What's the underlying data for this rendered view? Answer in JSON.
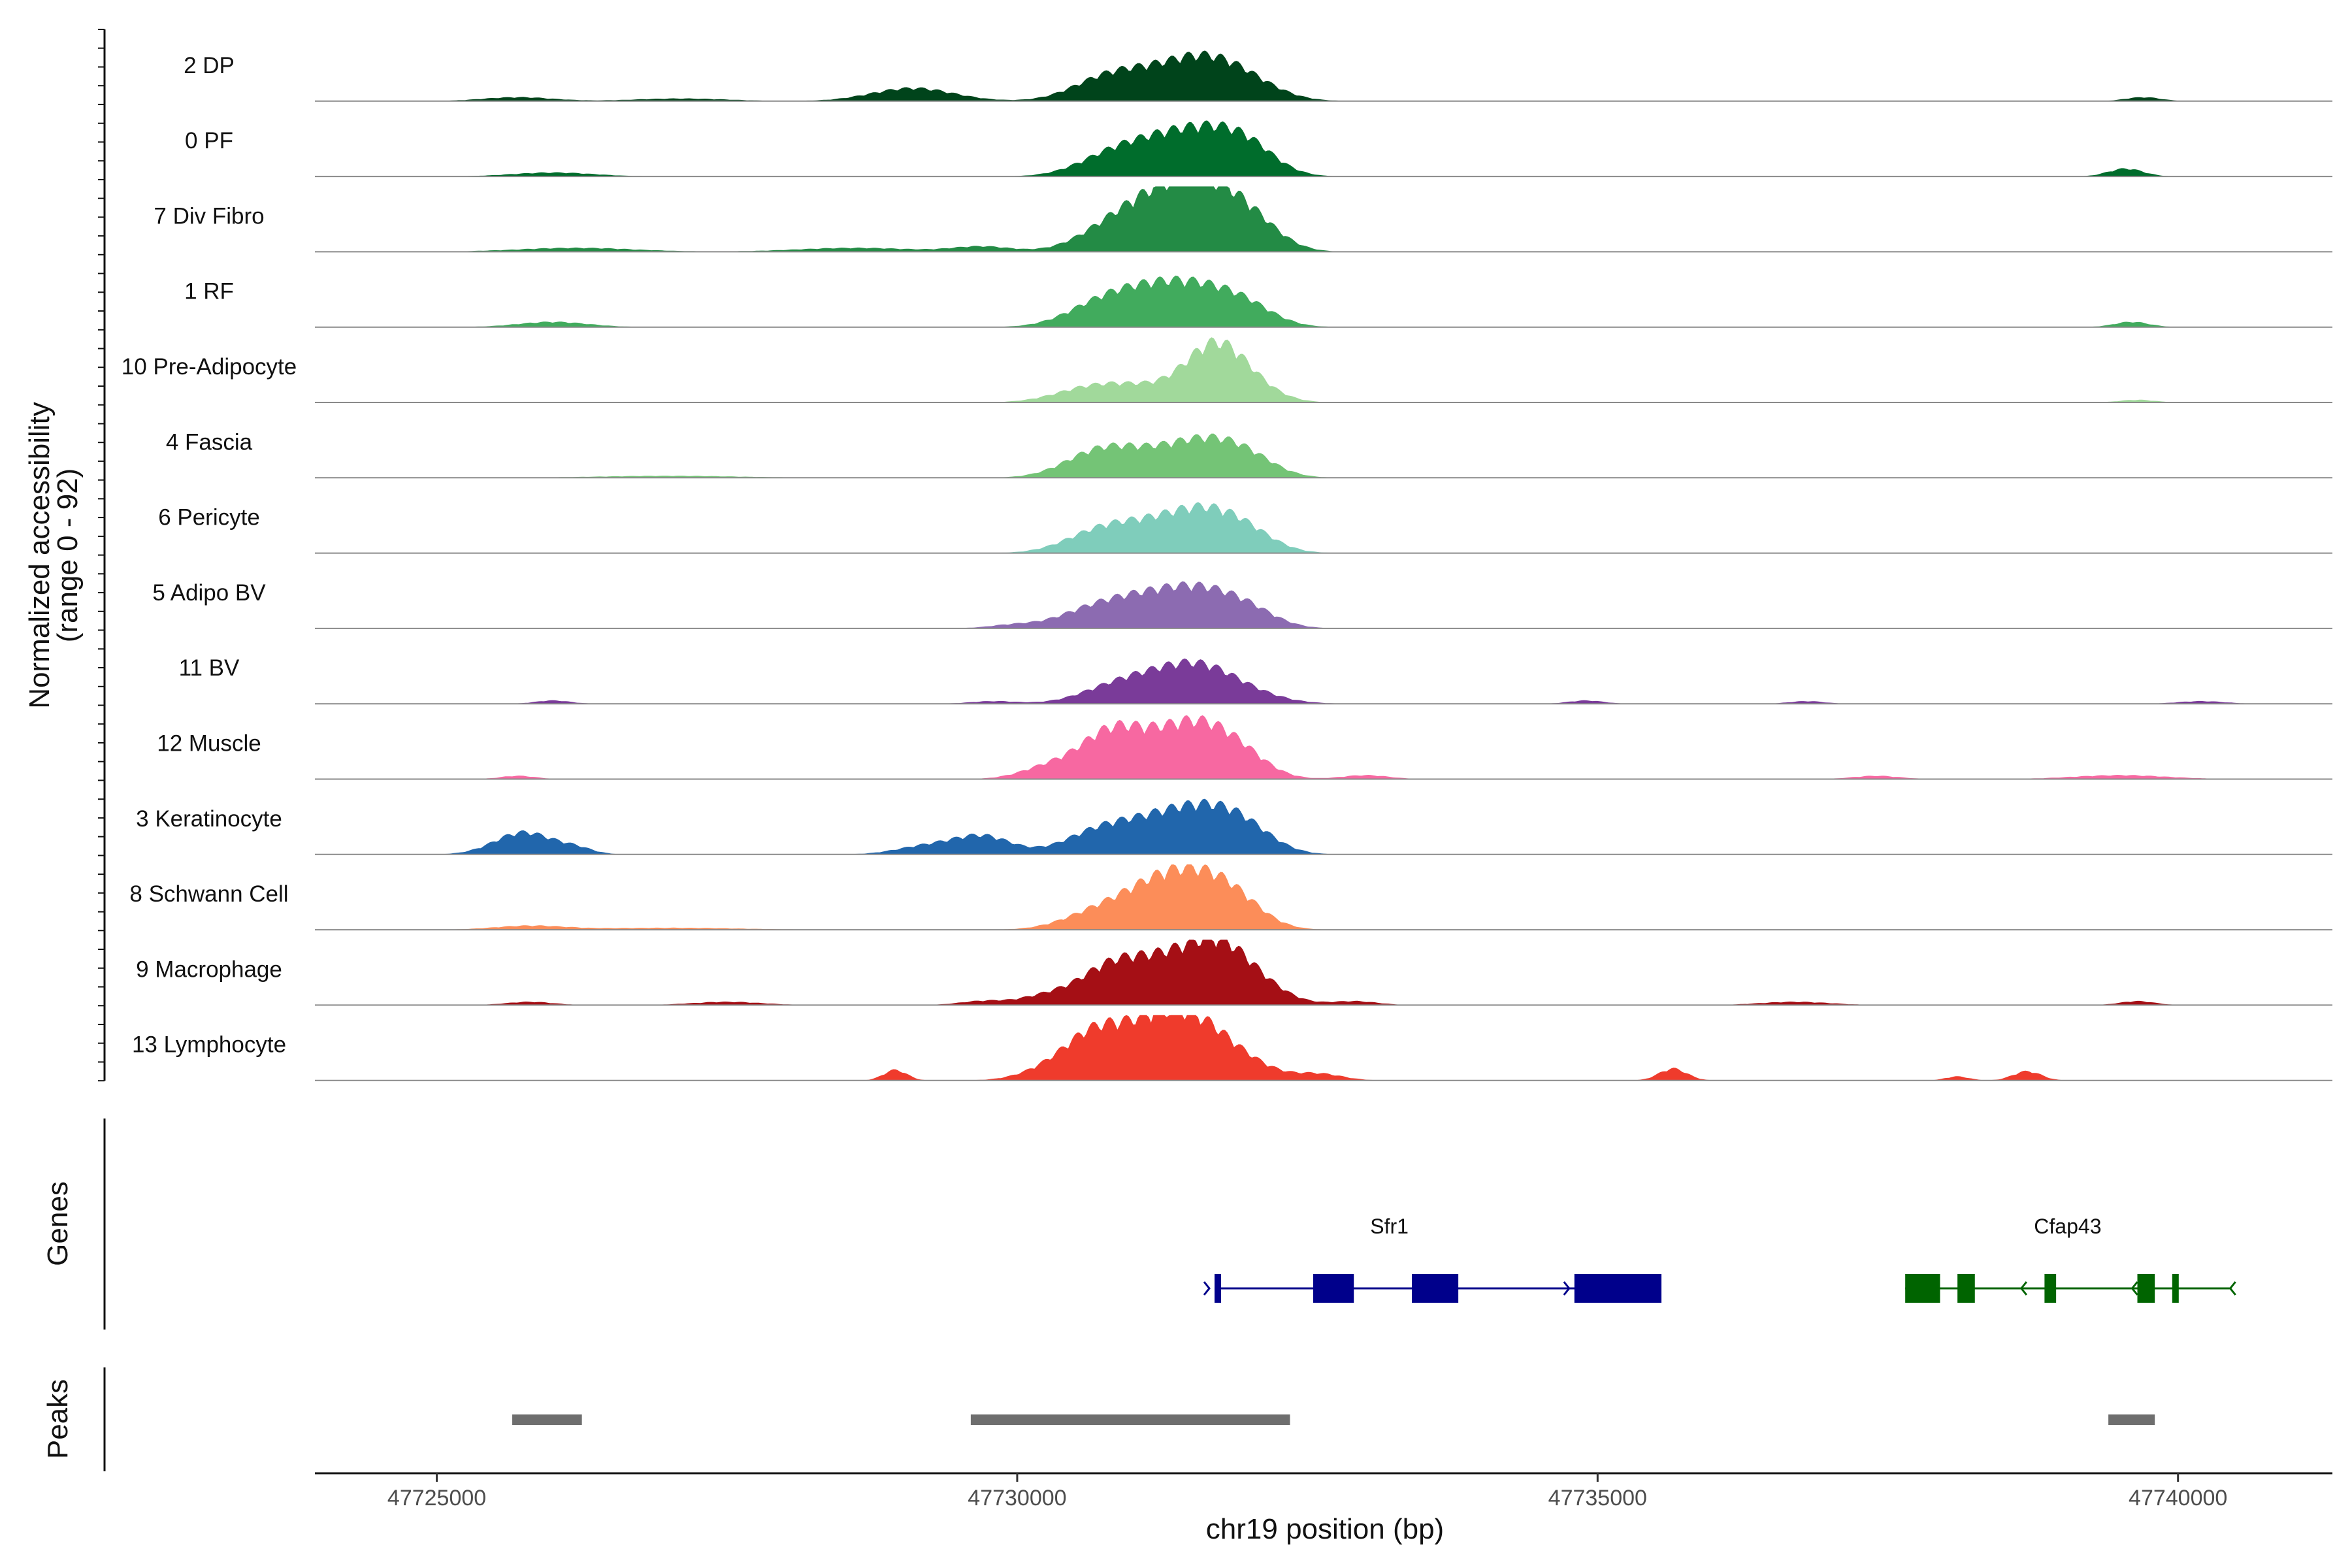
{
  "chart_data": {
    "type": "area",
    "title": "",
    "xlabel": "chr19 position (bp)",
    "ylabel": "Normalized accessibility",
    "ylabel_sub": "(range 0 - 92)",
    "ylim": [
      0,
      92
    ],
    "xlim": [
      47723950,
      47741330
    ],
    "x_ticks": [
      47725000,
      47730000,
      47735000,
      47740000
    ],
    "x_tick_labels": [
      "47725000",
      "47730000",
      "47735000",
      "47740000"
    ],
    "tracks": [
      {
        "name": "2 DP",
        "color": "#00441b",
        "peaks": [
          [
            47725700,
            6,
            300
          ],
          [
            47729100,
            20,
            350
          ],
          [
            47730750,
            28,
            300
          ],
          [
            47731200,
            32,
            350
          ],
          [
            47731600,
            40,
            300
          ],
          [
            47731950,
            28,
            300
          ],
          [
            47739700,
            6,
            150
          ],
          [
            47727100,
            4,
            400
          ]
        ]
      },
      {
        "name": "0 PF",
        "color": "#006d2c",
        "peaks": [
          [
            47726000,
            6,
            350
          ],
          [
            47730800,
            26,
            300
          ],
          [
            47731300,
            48,
            350
          ],
          [
            47731700,
            38,
            300
          ],
          [
            47732000,
            32,
            250
          ],
          [
            47739550,
            12,
            150
          ]
        ]
      },
      {
        "name": "7 Div Fibro",
        "color": "#238b45",
        "peaks": [
          [
            47726200,
            6,
            500
          ],
          [
            47728600,
            6,
            500
          ],
          [
            47729700,
            8,
            250
          ],
          [
            47730800,
            28,
            300
          ],
          [
            47731300,
            78,
            350
          ],
          [
            47731700,
            60,
            300
          ],
          [
            47732050,
            28,
            250
          ]
        ]
      },
      {
        "name": "1 RF",
        "color": "#41ab5d",
        "peaks": [
          [
            47726000,
            8,
            300
          ],
          [
            47730700,
            28,
            300
          ],
          [
            47731200,
            52,
            350
          ],
          [
            47731650,
            36,
            300
          ],
          [
            47732000,
            22,
            250
          ],
          [
            47739600,
            8,
            150
          ]
        ]
      },
      {
        "name": "10 Pre-Adipocyte",
        "color": "#a1d99b",
        "peaks": [
          [
            47730600,
            18,
            300
          ],
          [
            47731100,
            22,
            350
          ],
          [
            47731700,
            78,
            250
          ],
          [
            47732000,
            20,
            250
          ],
          [
            47739650,
            4,
            150
          ]
        ]
      },
      {
        "name": "4 Fascia",
        "color": "#74c476",
        "peaks": [
          [
            47730700,
            36,
            300
          ],
          [
            47731200,
            28,
            350
          ],
          [
            47731650,
            42,
            300
          ],
          [
            47732000,
            22,
            250
          ],
          [
            47727000,
            3,
            600
          ]
        ]
      },
      {
        "name": "6 Pericyte",
        "color": "#7fcdbb",
        "peaks": [
          [
            47730700,
            28,
            300
          ],
          [
            47731200,
            36,
            350
          ],
          [
            47731650,
            48,
            300
          ],
          [
            47732000,
            20,
            250
          ]
        ]
      },
      {
        "name": "5 Adipo BV",
        "color": "#8c6bb1",
        "peaks": [
          [
            47729950,
            5,
            200
          ],
          [
            47730600,
            20,
            300
          ],
          [
            47731100,
            42,
            350
          ],
          [
            47731600,
            44,
            300
          ],
          [
            47732000,
            22,
            250
          ]
        ]
      },
      {
        "name": "11 BV",
        "color": "#7a3b99",
        "peaks": [
          [
            47726000,
            5,
            150
          ],
          [
            47729800,
            4,
            200
          ],
          [
            47730800,
            16,
            300
          ],
          [
            47731200,
            32,
            350
          ],
          [
            47731600,
            40,
            300
          ],
          [
            47732000,
            12,
            300
          ],
          [
            47734900,
            5,
            150
          ],
          [
            47740200,
            4,
            200
          ],
          [
            47736800,
            4,
            150
          ]
        ]
      },
      {
        "name": "12 Muscle",
        "color": "#f768a1",
        "peaks": [
          [
            47725700,
            5,
            150
          ],
          [
            47730300,
            20,
            250
          ],
          [
            47730800,
            66,
            250
          ],
          [
            47731200,
            40,
            250
          ],
          [
            47731550,
            60,
            250
          ],
          [
            47731900,
            40,
            250
          ],
          [
            47733000,
            6,
            200
          ],
          [
            47737400,
            5,
            200
          ],
          [
            47739500,
            6,
            400
          ]
        ]
      },
      {
        "name": "3 Keratinocyte",
        "color": "#2166ac",
        "peaks": [
          [
            47725750,
            34,
            250
          ],
          [
            47726200,
            8,
            150
          ],
          [
            47729700,
            28,
            250
          ],
          [
            47729200,
            12,
            250
          ],
          [
            47730700,
            32,
            300
          ],
          [
            47731300,
            52,
            350
          ],
          [
            47731750,
            42,
            300
          ],
          [
            47732000,
            18,
            250
          ]
        ]
      },
      {
        "name": "8 Schwann Cell",
        "color": "#fc8d59",
        "peaks": [
          [
            47725800,
            6,
            300
          ],
          [
            47727000,
            3,
            600
          ],
          [
            47730700,
            26,
            300
          ],
          [
            47731200,
            54,
            300
          ],
          [
            47731600,
            58,
            300
          ],
          [
            47731900,
            26,
            250
          ]
        ]
      },
      {
        "name": "9 Macrophage",
        "color": "#a50f15",
        "peaks": [
          [
            47725800,
            5,
            200
          ],
          [
            47727500,
            5,
            300
          ],
          [
            47729700,
            6,
            200
          ],
          [
            47730300,
            16,
            250
          ],
          [
            47730800,
            50,
            250
          ],
          [
            47731300,
            64,
            300
          ],
          [
            47731750,
            72,
            250
          ],
          [
            47732100,
            24,
            250
          ],
          [
            47732900,
            6,
            200
          ],
          [
            47736700,
            5,
            300
          ],
          [
            47739650,
            6,
            150
          ]
        ]
      },
      {
        "name": "13 Lymphocyte",
        "color": "#ef3b2c",
        "peaks": [
          [
            47728950,
            16,
            100
          ],
          [
            47730300,
            18,
            250
          ],
          [
            47730700,
            70,
            250
          ],
          [
            47731200,
            78,
            250
          ],
          [
            47731600,
            68,
            250
          ],
          [
            47732000,
            22,
            250
          ],
          [
            47732600,
            10,
            200
          ],
          [
            47735650,
            18,
            120
          ],
          [
            47738100,
            6,
            100
          ],
          [
            47738700,
            14,
            120
          ]
        ]
      }
    ],
    "genes": [
      {
        "name": "Sfr1",
        "strand": "+",
        "color": "#00008b",
        "start": 47731700,
        "end": 47735500,
        "exons": [
          [
            47731700,
            47731750
          ],
          [
            47732550,
            47732900
          ],
          [
            47733400,
            47733800
          ],
          [
            47734800,
            47735550
          ]
        ]
      },
      {
        "name": "Cfap43",
        "strand": "-",
        "color": "#006400",
        "start": 47737650,
        "end": 47740450,
        "exons": [
          [
            47737650,
            47737950
          ],
          [
            47738100,
            47738250
          ],
          [
            47738850,
            47738950
          ],
          [
            47739650,
            47739800
          ],
          [
            47739950,
            47739990
          ]
        ]
      }
    ],
    "peaks_track": [
      [
        47725650,
        47726250
      ],
      [
        47729600,
        47732350
      ],
      [
        47739400,
        47739800
      ]
    ],
    "panel_labels": {
      "genes": "Genes",
      "peaks": "Peaks"
    }
  }
}
